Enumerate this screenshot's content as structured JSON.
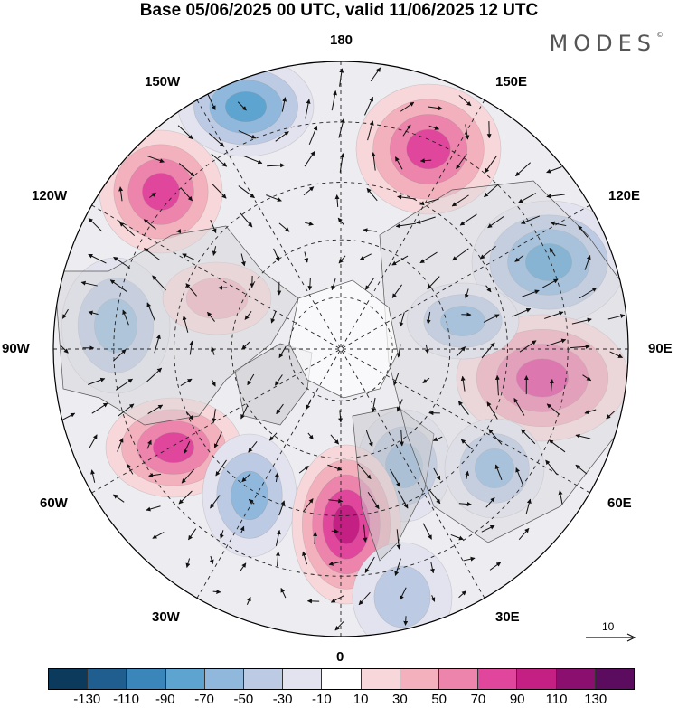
{
  "title": "Base 05/06/2025 00 UTC, valid 11/06/2025 12 UTC",
  "brand": "MODES",
  "brand_mark": "©",
  "longitude_labels": {
    "top": "180",
    "top_left": "150W",
    "top_right": "150E",
    "upper_left": "120W",
    "upper_right": "120E",
    "left": "90W",
    "right": "90E",
    "lower_left": "60W",
    "lower_right": "60E",
    "bottom_left": "30W",
    "bottom_right": "30E",
    "bottom": "0"
  },
  "reference_vector": {
    "label": "10"
  },
  "colorbar": {
    "colors": [
      "#0b3a5c",
      "#1f5e8f",
      "#3a86bb",
      "#5da4d0",
      "#8fb8dc",
      "#bccbe3",
      "#e3e3ef",
      "#ffffff",
      "#f8d7da",
      "#f3b0bd",
      "#ec84ab",
      "#e0469b",
      "#c41f83",
      "#8a0f6f",
      "#5b0c5f"
    ],
    "tick_labels": [
      "-130",
      "-110",
      "-90",
      "-70",
      "-50",
      "-30",
      "-10",
      "10",
      "30",
      "50",
      "70",
      "90",
      "110",
      "130"
    ]
  },
  "anomaly_centers": [
    {
      "sign": "negative",
      "level": 3
    },
    {
      "sign": "positive",
      "level": 3
    },
    {
      "sign": "positive",
      "level": 3
    },
    {
      "sign": "negative",
      "level": 3
    },
    {
      "sign": "negative",
      "level": 2
    },
    {
      "sign": "positive",
      "level": 3
    },
    {
      "sign": "positive",
      "level": 3
    },
    {
      "sign": "negative",
      "level": 2
    },
    {
      "sign": "negative",
      "level": 2
    },
    {
      "sign": "positive",
      "level": 4
    },
    {
      "sign": "negative",
      "level": 2
    },
    {
      "sign": "negative",
      "level": 2
    },
    {
      "sign": "negative",
      "level": 1
    },
    {
      "sign": "positive",
      "level": 1
    }
  ]
}
